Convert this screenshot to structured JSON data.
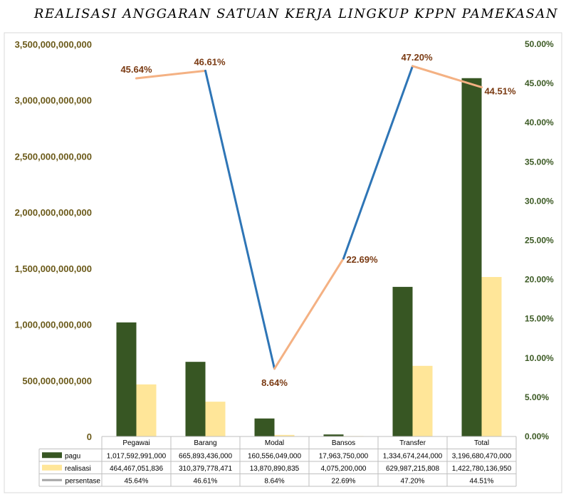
{
  "chart_data": {
    "type": "bar",
    "title": "REALISASI ANGGARAN SATUAN KERJA LINGKUP KPPN PAMEKASAN",
    "categories": [
      "Pegawai",
      "Barang",
      "Modal",
      "Bansos",
      "Transfer",
      "Total"
    ],
    "series": [
      {
        "name": "pagu",
        "type": "bar",
        "axis": "left",
        "color": "#375623",
        "values": [
          1017592991000,
          665893436000,
          160556049000,
          17963750000,
          1334674244000,
          3196680470000
        ],
        "table_values": [
          "1,017,592,991,000",
          "665,893,436,000",
          "160,556,049,000",
          "17,963,750,000",
          "1,334,674,244,000",
          "3,196,680,470,000"
        ]
      },
      {
        "name": "realisasi",
        "type": "bar",
        "axis": "left",
        "color": "#ffe699",
        "values": [
          464467051836,
          310379778471,
          13870890835,
          4075200000,
          629987215808,
          1422780136950
        ],
        "table_values": [
          "464,467,051,836",
          "310,379,778,471",
          "13,870,890,835",
          "4,075,200,000",
          "629,987,215,808",
          "1,422,780,136,950"
        ]
      },
      {
        "name": "persentase",
        "type": "line",
        "axis": "right",
        "color": "#a5a5a5",
        "values": [
          45.64,
          46.61,
          8.64,
          22.69,
          47.2,
          44.51
        ],
        "labels": [
          "45.64%",
          "46.61%",
          "8.64%",
          "22.69%",
          "47.20%",
          "44.51%"
        ],
        "table_values": [
          "45.64%",
          "46.61%",
          "8.64%",
          "22.69%",
          "47.20%",
          "44.51%"
        ]
      }
    ],
    "segment_colors": [
      "#f4b183",
      "#2e75b6",
      "#f4b183",
      "#2e75b6",
      "#f4b183"
    ],
    "ylim_left": [
      0,
      3500000000000
    ],
    "yticks_left": [
      "0",
      "500,000,000,000",
      "1,000,000,000,000",
      "1,500,000,000,000",
      "2,000,000,000,000",
      "2,500,000,000,000",
      "3,000,000,000,000",
      "3,500,000,000,000"
    ],
    "ylim_right": [
      0,
      50
    ],
    "yticks_right": [
      "0.00%",
      "5.00%",
      "10.00%",
      "15.00%",
      "20.00%",
      "25.00%",
      "30.00%",
      "35.00%",
      "40.00%",
      "45.00%",
      "50.00%"
    ],
    "grid": false,
    "legend": "data-table-bottom"
  }
}
